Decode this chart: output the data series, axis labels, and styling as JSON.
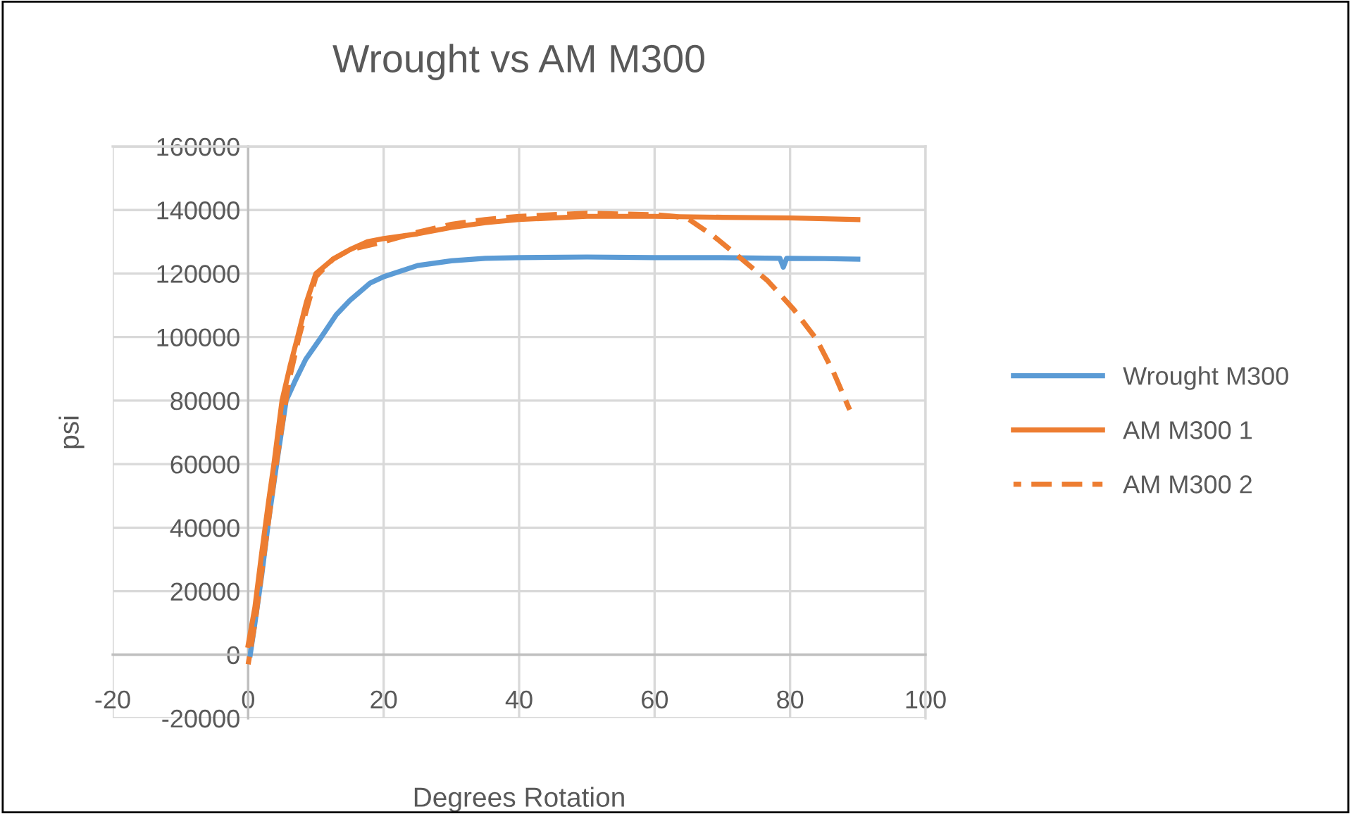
{
  "chart_data": {
    "type": "line",
    "title": "Wrought vs AM M300",
    "xlabel": "Degrees Rotation",
    "ylabel": "psi",
    "xlim": [
      -20,
      100
    ],
    "xticks": [
      -20,
      0,
      20,
      40,
      60,
      80,
      100
    ],
    "ylim": [
      -20000,
      160000
    ],
    "yticks": [
      -20000,
      0,
      20000,
      40000,
      60000,
      80000,
      100000,
      120000,
      140000,
      160000
    ],
    "grid": true,
    "legend": "right",
    "marker": "none",
    "series": [
      {
        "name": "Wrought M300",
        "color": "#5b9bd5",
        "line_style": "solid",
        "x": [
          0.3,
          1,
          2,
          3,
          4.2,
          5.6,
          7,
          8.5,
          10.8,
          13,
          15,
          18,
          20,
          25,
          30,
          35,
          40,
          50,
          60,
          70,
          78.5,
          79,
          79.5,
          85,
          90
        ],
        "values": [
          0,
          10000,
          25000,
          42000,
          60000,
          80000,
          86500,
          93000,
          100000,
          107000,
          111500,
          117000,
          119000,
          122500,
          124000,
          124800,
          125000,
          125200,
          125000,
          125000,
          124800,
          122000,
          124800,
          124700,
          124500
        ]
      },
      {
        "name": "AM M300 1",
        "color": "#ed7d31",
        "line_style": "solid",
        "x": [
          0,
          1,
          2,
          3,
          3.8,
          5,
          6.2,
          7.3,
          8.6,
          10,
          12.5,
          15,
          17.6,
          20,
          25,
          30,
          35,
          40,
          50,
          60,
          70,
          80,
          90
        ],
        "values": [
          3000,
          15000,
          32000,
          48000,
          60000,
          80000,
          91000,
          100000,
          111000,
          120000,
          124500,
          127500,
          130000,
          131000,
          132500,
          134500,
          136000,
          137000,
          138000,
          138000,
          137700,
          137500,
          137000
        ]
      },
      {
        "name": "AM M300 2",
        "color": "#ed7d31",
        "line_style": "dashed",
        "x": [
          0,
          1,
          2,
          3,
          4,
          5,
          6,
          7.5,
          8.8,
          10,
          12.5,
          15,
          20,
          25,
          30,
          35,
          40,
          50,
          60,
          63,
          65.1,
          68.7,
          72.5,
          76.7,
          80.5,
          83.9,
          86.4,
          88.8
        ],
        "values": [
          -3000,
          10000,
          26000,
          42000,
          58000,
          72000,
          86000,
          100000,
          110000,
          119000,
          124500,
          127500,
          130000,
          133000,
          135500,
          137000,
          138000,
          139000,
          138500,
          138000,
          137000,
          131800,
          125200,
          117700,
          108800,
          99300,
          89000,
          77100
        ]
      }
    ]
  }
}
